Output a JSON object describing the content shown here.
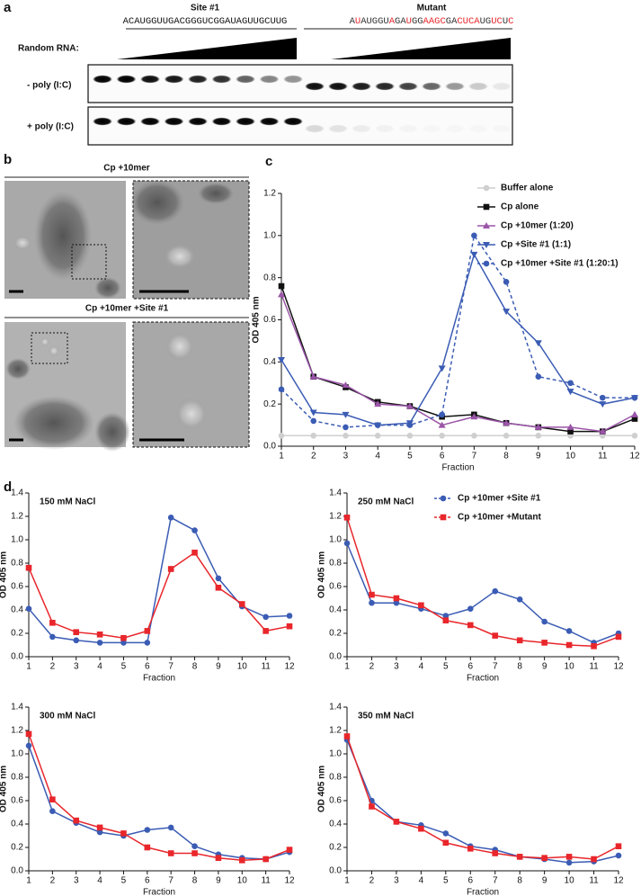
{
  "panel_labels": [
    "a",
    "b",
    "c",
    "d"
  ],
  "panel_a": {
    "site": {
      "label": "Site #1",
      "sequence": "ACAUGGUUGACGGGUCGGAUAGUUGCUUG"
    },
    "mutant": {
      "label": "Mutant",
      "sequence": [
        {
          "text": "A",
          "mutated": false
        },
        {
          "text": "U",
          "mutated": true
        },
        {
          "text": "AUGGU",
          "mutated": false
        },
        {
          "text": "A",
          "mutated": true
        },
        {
          "text": "GA",
          "mutated": false
        },
        {
          "text": "U",
          "mutated": true
        },
        {
          "text": "GG",
          "mutated": false
        },
        {
          "text": "AAGC",
          "mutated": true
        },
        {
          "text": "GA",
          "mutated": false
        },
        {
          "text": "CUCA",
          "mutated": true
        },
        {
          "text": "UG",
          "mutated": false
        },
        {
          "text": "UC",
          "mutated": true
        },
        {
          "text": "U",
          "mutated": false
        },
        {
          "text": "C",
          "mutated": true
        }
      ]
    },
    "random_rna": "Random RNA:",
    "rows": [
      "- poly (I:C)",
      "+ poly (I:C)"
    ]
  },
  "panel_b": {
    "conditions": [
      "Cp +10mer",
      "Cp +10mer +Site #1"
    ]
  },
  "chart_data": [
    {
      "type": "line",
      "ylabel": "OD 405 nm",
      "xlabel": "Fraction",
      "legend": "upper right",
      "x": [
        1,
        2,
        3,
        4,
        5,
        6,
        7,
        8,
        9,
        10,
        11,
        12
      ],
      "xlim": [
        1,
        12
      ],
      "xticks": [
        1,
        2,
        3,
        4,
        5,
        6,
        7,
        8,
        9,
        10,
        11,
        12
      ],
      "ylim": [
        0,
        1.2
      ],
      "yticks": [
        {
          "value": 0,
          "label": "0.0"
        },
        0.2,
        0.4,
        0.6,
        0.8,
        {
          "value": 1,
          "label": "1.0"
        },
        1.2
      ],
      "series": [
        {
          "name": "Buffer alone",
          "color": "#cfcfcf",
          "marker": "circle",
          "dashed": false,
          "values": [
            0.05,
            0.05,
            0.05,
            0.05,
            0.05,
            0.05,
            0.05,
            0.05,
            0.05,
            0.05,
            0.05,
            0.05
          ]
        },
        {
          "name": "Cp alone",
          "color": "#111111",
          "marker": "square",
          "dashed": false,
          "values": [
            0.76,
            0.33,
            0.28,
            0.21,
            0.19,
            0.14,
            0.15,
            0.11,
            0.09,
            0.07,
            0.07,
            0.13
          ]
        },
        {
          "name": "Cp +10mer (1:20)",
          "color": "#9b55a8",
          "marker": "triangle-up",
          "dashed": false,
          "values": [
            0.72,
            0.33,
            0.29,
            0.2,
            0.19,
            0.1,
            0.14,
            0.11,
            0.09,
            0.09,
            0.07,
            0.15
          ]
        },
        {
          "name": "Cp +Site #1 (1:1)",
          "color": "#3b5cb4",
          "marker": "triangle-down",
          "dashed": false,
          "values": [
            0.41,
            0.16,
            0.15,
            0.1,
            0.11,
            0.37,
            0.91,
            0.64,
            0.49,
            0.26,
            0.2,
            0.23
          ]
        },
        {
          "name": "Cp +10mer +Site #1 (1:20:1)",
          "color": "#3b5cb4",
          "marker": "circle",
          "dashed": true,
          "values": [
            0.27,
            0.12,
            0.09,
            0.1,
            0.1,
            0.15,
            1.0,
            0.78,
            0.33,
            0.3,
            0.23,
            0.23
          ]
        }
      ]
    },
    {
      "type": "line",
      "title": "150 mM NaCl",
      "ylabel": "OD 405 nm",
      "xlabel": "Fraction",
      "x": [
        1,
        2,
        3,
        4,
        5,
        6,
        7,
        8,
        9,
        10,
        11,
        12
      ],
      "xlim": [
        1,
        12
      ],
      "xticks": [
        1,
        2,
        3,
        4,
        5,
        6,
        7,
        8,
        9,
        10,
        11,
        12
      ],
      "ylim": [
        0,
        1.4
      ],
      "yticks": [
        {
          "value": 0,
          "label": "0.0"
        },
        0.2,
        0.4,
        0.6,
        0.8,
        {
          "value": 1,
          "label": "1.0"
        },
        1.2,
        1.4
      ],
      "series": [
        {
          "name": "Cp +10mer +Site #1",
          "color": "#3b5cb4",
          "marker": "circle",
          "values": [
            0.41,
            0.17,
            0.14,
            0.12,
            0.12,
            0.12,
            1.19,
            1.08,
            0.67,
            0.43,
            0.34,
            0.35
          ]
        },
        {
          "name": "Cp +10mer +Mutant",
          "color": "#e8262b",
          "marker": "square",
          "values": [
            0.76,
            0.29,
            0.21,
            0.19,
            0.16,
            0.22,
            0.75,
            0.89,
            0.59,
            0.45,
            0.22,
            0.26
          ]
        }
      ]
    },
    {
      "type": "line",
      "title": "250 mM NaCl",
      "ylabel": "OD 405 nm",
      "xlabel": "Fraction",
      "legend": "upper right",
      "x": [
        1,
        2,
        3,
        4,
        5,
        6,
        7,
        8,
        9,
        10,
        11,
        12
      ],
      "xlim": [
        1,
        12
      ],
      "xticks": [
        1,
        2,
        3,
        4,
        5,
        6,
        7,
        8,
        9,
        10,
        11,
        12
      ],
      "ylim": [
        0,
        1.4
      ],
      "yticks": [
        {
          "value": 0,
          "label": "0.0"
        },
        0.2,
        0.4,
        0.6,
        0.8,
        {
          "value": 1,
          "label": "1.0"
        },
        1.2,
        1.4
      ],
      "series": [
        {
          "name": "Cp +10mer +Site #1",
          "color": "#3b5cb4",
          "marker": "circle",
          "values": [
            0.97,
            0.46,
            0.46,
            0.41,
            0.35,
            0.41,
            0.56,
            0.49,
            0.3,
            0.22,
            0.12,
            0.2
          ]
        },
        {
          "name": "Cp +10mer +Mutant",
          "color": "#e8262b",
          "marker": "square",
          "values": [
            1.19,
            0.53,
            0.5,
            0.44,
            0.31,
            0.27,
            0.18,
            0.14,
            0.12,
            0.1,
            0.09,
            0.17
          ]
        }
      ]
    },
    {
      "type": "line",
      "title": "300 mM NaCl",
      "ylabel": "OD 405 nm",
      "xlabel": "Fraction",
      "x": [
        1,
        2,
        3,
        4,
        5,
        6,
        7,
        8,
        9,
        10,
        11,
        12
      ],
      "xlim": [
        1,
        12
      ],
      "xticks": [
        1,
        2,
        3,
        4,
        5,
        6,
        7,
        8,
        9,
        10,
        11,
        12
      ],
      "ylim": [
        0,
        1.4
      ],
      "yticks": [
        {
          "value": 0,
          "label": "0.0"
        },
        0.2,
        0.4,
        0.6,
        0.8,
        {
          "value": 1,
          "label": "1.0"
        },
        1.2,
        1.4
      ],
      "series": [
        {
          "name": "Cp +10mer +Site #1",
          "color": "#3b5cb4",
          "marker": "circle",
          "values": [
            1.07,
            0.51,
            0.41,
            0.33,
            0.3,
            0.35,
            0.37,
            0.21,
            0.14,
            0.11,
            0.1,
            0.16
          ]
        },
        {
          "name": "Cp +10mer +Mutant",
          "color": "#e8262b",
          "marker": "square",
          "values": [
            1.17,
            0.61,
            0.43,
            0.37,
            0.32,
            0.2,
            0.15,
            0.15,
            0.11,
            0.09,
            0.1,
            0.18
          ]
        }
      ]
    },
    {
      "type": "line",
      "title": "350 mM NaCl",
      "ylabel": "OD 405 nm",
      "xlabel": "Fraction",
      "x": [
        1,
        2,
        3,
        4,
        5,
        6,
        7,
        8,
        9,
        10,
        11,
        12
      ],
      "xlim": [
        1,
        12
      ],
      "xticks": [
        1,
        2,
        3,
        4,
        5,
        6,
        7,
        8,
        9,
        10,
        11,
        12
      ],
      "ylim": [
        0,
        1.4
      ],
      "yticks": [
        {
          "value": 0,
          "label": "0.0"
        },
        0.2,
        0.4,
        0.6,
        0.8,
        {
          "value": 1,
          "label": "1.0"
        },
        1.2,
        1.4
      ],
      "series": [
        {
          "name": "Cp +10mer +Site #1",
          "color": "#3b5cb4",
          "marker": "circle",
          "values": [
            1.12,
            0.6,
            0.42,
            0.39,
            0.32,
            0.21,
            0.18,
            0.12,
            0.1,
            0.07,
            0.08,
            0.13
          ]
        },
        {
          "name": "Cp +10mer +Mutant",
          "color": "#e8262b",
          "marker": "square",
          "values": [
            1.15,
            0.55,
            0.42,
            0.36,
            0.24,
            0.19,
            0.15,
            0.12,
            0.11,
            0.12,
            0.1,
            0.21
          ]
        }
      ]
    }
  ]
}
